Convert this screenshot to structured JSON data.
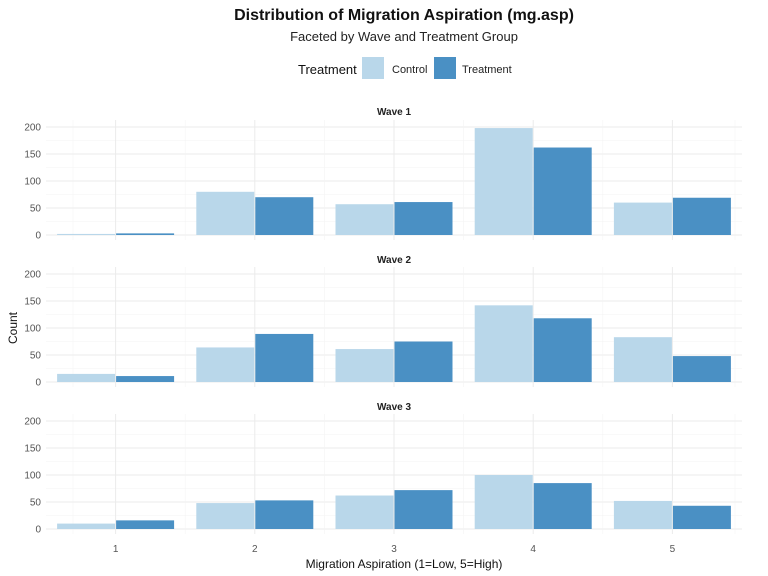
{
  "chart_data": {
    "type": "bar",
    "title": "Distribution of Migration Aspiration (mg.asp)",
    "subtitle": "Faceted by Wave and Treatment Group",
    "xlabel": "Migration Aspiration (1=Low, 5=High)",
    "ylabel": "Count",
    "categories": [
      "1",
      "2",
      "3",
      "4",
      "5"
    ],
    "ylim": [
      0,
      200
    ],
    "yticks": [
      0,
      50,
      100,
      150,
      200
    ],
    "grid": true,
    "legend": {
      "title": "Treatment",
      "placement": "top",
      "entries": [
        {
          "name": "Control",
          "color": "#b9d7ea"
        },
        {
          "name": "Treatment",
          "color": "#4a90c4"
        }
      ]
    },
    "facets": [
      {
        "label": "Wave 1",
        "series": [
          {
            "name": "Control",
            "values": [
              2,
              80,
              57,
              198,
              60
            ]
          },
          {
            "name": "Treatment",
            "values": [
              3,
              70,
              61,
              162,
              69
            ]
          }
        ]
      },
      {
        "label": "Wave 2",
        "series": [
          {
            "name": "Control",
            "values": [
              15,
              64,
              61,
              142,
              83
            ]
          },
          {
            "name": "Treatment",
            "values": [
              11,
              89,
              75,
              118,
              48
            ]
          }
        ]
      },
      {
        "label": "Wave 3",
        "series": [
          {
            "name": "Control",
            "values": [
              10,
              48,
              62,
              100,
              52
            ]
          },
          {
            "name": "Treatment",
            "values": [
              16,
              53,
              72,
              85,
              43
            ]
          }
        ]
      }
    ]
  }
}
